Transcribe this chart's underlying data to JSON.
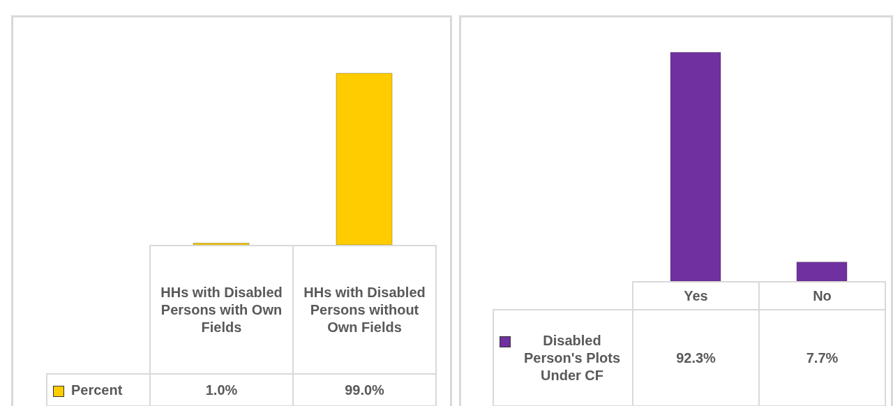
{
  "chart_data": [
    {
      "type": "bar",
      "categories": [
        "HHs with Disabled Persons with Own Fields",
        "HHs with Disabled Persons without Own Fields"
      ],
      "legend": "bottom left",
      "series": [
        {
          "name": "Percent",
          "color": "#ffcc00",
          "values": [
            1.0,
            99.0
          ],
          "value_labels": [
            "1.0%",
            "99.0%"
          ]
        }
      ]
    },
    {
      "type": "bar",
      "categories": [
        "Yes",
        "No"
      ],
      "legend": "bottom left",
      "series": [
        {
          "name": "Disabled Person's Plots Under CF",
          "color": "#7030a0",
          "values": [
            92.3,
            7.7
          ],
          "value_labels": [
            "92.3%",
            "7.7%"
          ]
        }
      ]
    }
  ]
}
